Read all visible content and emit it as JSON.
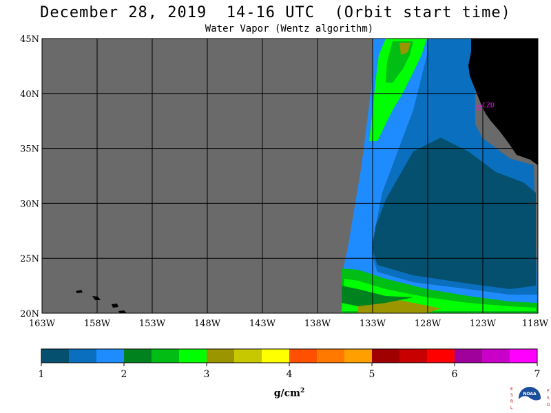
{
  "title": "December 28, 2019  14-16 UTC  (Orbit start time)",
  "subtitle": "Water Vapor (Wentz algorithm)",
  "map": {
    "lat_range": [
      20,
      45
    ],
    "lon_range": [
      -163,
      -118
    ],
    "lat_labels": [
      "45N",
      "40N",
      "35N",
      "30N",
      "25N",
      "20N"
    ],
    "lon_labels": [
      "163W",
      "158W",
      "153W",
      "148W",
      "143W",
      "138W",
      "133W",
      "128W",
      "123W",
      "118W"
    ],
    "marker_label": "CZD",
    "no_data_color": "#6a6a6a",
    "land_color": "#000000",
    "marker_color": "#ff00ff"
  },
  "colorbar": {
    "min": 1,
    "max": 7,
    "tick_labels": [
      "1",
      "2",
      "3",
      "4",
      "5",
      "6",
      "7"
    ],
    "colors": [
      "#05506e",
      "#0a6fbe",
      "#1e8cff",
      "#00821e",
      "#00be14",
      "#00ff00",
      "#9b9600",
      "#c8c800",
      "#ffff00",
      "#ff5000",
      "#ff7800",
      "#ffa000",
      "#a00000",
      "#c80000",
      "#ff0000",
      "#a0009b",
      "#c800c8",
      "#ff00ff"
    ],
    "unit_base": "g/cm",
    "unit_exp": "2"
  },
  "logo": {
    "left_letters": "ESRL",
    "right_letters": "PSD",
    "text": "NOAA"
  }
}
